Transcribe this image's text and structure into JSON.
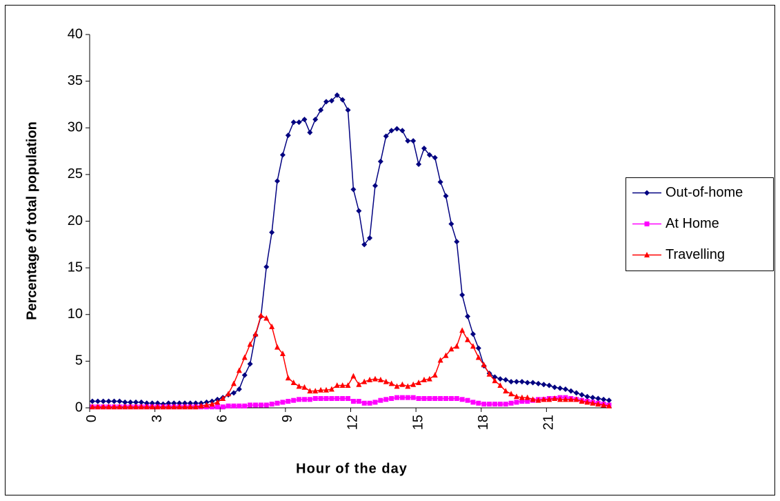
{
  "chart_data": {
    "type": "line",
    "x_label": "Hour of the day",
    "y_label": "Percentage of total population",
    "categories": [
      "0",
      null,
      null,
      null,
      null,
      null,
      null,
      null,
      null,
      null,
      null,
      null,
      "3",
      null,
      null,
      null,
      null,
      null,
      null,
      null,
      null,
      null,
      null,
      null,
      "6",
      null,
      null,
      null,
      null,
      null,
      null,
      null,
      null,
      null,
      null,
      null,
      "9",
      null,
      null,
      null,
      null,
      null,
      null,
      null,
      null,
      null,
      null,
      null,
      "12",
      null,
      null,
      null,
      null,
      null,
      null,
      null,
      null,
      null,
      null,
      null,
      "15",
      null,
      null,
      null,
      null,
      null,
      null,
      null,
      null,
      null,
      null,
      null,
      "18",
      null,
      null,
      null,
      null,
      null,
      null,
      null,
      null,
      null,
      null,
      null,
      "21",
      null,
      null,
      null,
      null,
      null,
      null,
      null,
      null,
      null,
      null,
      null
    ],
    "ylim": [
      0,
      40
    ],
    "yticks": [
      0,
      5,
      10,
      15,
      20,
      25,
      30,
      35,
      40
    ],
    "legend": "right",
    "series": [
      {
        "name": "Out-of-home",
        "color": "#000080",
        "marker": "diamond",
        "values": [
          0.7,
          0.7,
          0.7,
          0.7,
          0.7,
          0.7,
          0.6,
          0.6,
          0.6,
          0.6,
          0.5,
          0.5,
          0.5,
          0.4,
          0.5,
          0.5,
          0.5,
          0.5,
          0.5,
          0.5,
          0.5,
          0.6,
          0.7,
          0.9,
          1.1,
          1.4,
          1.6,
          2.0,
          3.5,
          4.7,
          7.8,
          9.8,
          15.1,
          18.8,
          24.3,
          27.1,
          29.2,
          30.6,
          30.6,
          30.9,
          29.5,
          30.9,
          31.9,
          32.8,
          32.9,
          33.5,
          33.0,
          31.9,
          23.4,
          21.1,
          17.5,
          18.2,
          23.8,
          26.4,
          29.1,
          29.7,
          29.9,
          29.7,
          28.6,
          28.6,
          26.1,
          27.8,
          27.1,
          26.8,
          24.2,
          22.7,
          19.7,
          17.8,
          12.1,
          9.8,
          7.9,
          6.4,
          4.5,
          3.7,
          3.3,
          3.1,
          3.0,
          2.8,
          2.8,
          2.8,
          2.7,
          2.7,
          2.6,
          2.5,
          2.4,
          2.2,
          2.1,
          2.0,
          1.8,
          1.6,
          1.4,
          1.2,
          1.1,
          1.0,
          0.9,
          0.8
        ]
      },
      {
        "name": "At Home",
        "color": "#ff00ff",
        "marker": "square",
        "values": [
          0.1,
          0.1,
          0.1,
          0.1,
          0.1,
          0.1,
          0.1,
          0.1,
          0.1,
          0.1,
          0.1,
          0.1,
          0.1,
          0.1,
          0.1,
          0.1,
          0.1,
          0.1,
          0.1,
          0.1,
          0.1,
          0.1,
          0.1,
          0.1,
          0.1,
          0.2,
          0.2,
          0.2,
          0.2,
          0.3,
          0.3,
          0.3,
          0.3,
          0.4,
          0.5,
          0.6,
          0.7,
          0.8,
          0.9,
          0.9,
          0.9,
          1.0,
          1.0,
          1.0,
          1.0,
          1.0,
          1.0,
          1.0,
          0.7,
          0.7,
          0.5,
          0.5,
          0.6,
          0.8,
          0.9,
          1.0,
          1.1,
          1.1,
          1.1,
          1.1,
          1.0,
          1.0,
          1.0,
          1.0,
          1.0,
          1.0,
          1.0,
          1.0,
          0.9,
          0.8,
          0.6,
          0.5,
          0.4,
          0.4,
          0.4,
          0.4,
          0.4,
          0.5,
          0.6,
          0.7,
          0.7,
          0.8,
          0.9,
          0.9,
          1.0,
          1.0,
          1.1,
          1.1,
          1.0,
          0.9,
          0.8,
          0.7,
          0.6,
          0.5,
          0.4,
          0.3
        ]
      },
      {
        "name": "Travelling",
        "color": "#ff0000",
        "marker": "triangle",
        "values": [
          0.1,
          0.1,
          0.1,
          0.1,
          0.1,
          0.1,
          0.1,
          0.1,
          0.1,
          0.1,
          0.1,
          0.1,
          0.1,
          0.1,
          0.1,
          0.1,
          0.1,
          0.1,
          0.1,
          0.1,
          0.2,
          0.3,
          0.4,
          0.6,
          1.0,
          1.5,
          2.6,
          4.0,
          5.4,
          6.8,
          7.9,
          9.9,
          9.6,
          8.7,
          6.5,
          5.8,
          3.2,
          2.7,
          2.3,
          2.2,
          1.8,
          1.8,
          1.9,
          1.9,
          2.0,
          2.4,
          2.4,
          2.4,
          3.4,
          2.5,
          2.8,
          3.0,
          3.1,
          3.0,
          2.8,
          2.6,
          2.3,
          2.5,
          2.3,
          2.5,
          2.7,
          3.0,
          3.1,
          3.5,
          5.1,
          5.6,
          6.3,
          6.6,
          8.3,
          7.3,
          6.6,
          5.4,
          4.6,
          3.6,
          2.9,
          2.4,
          1.8,
          1.5,
          1.2,
          1.1,
          1.1,
          0.9,
          0.8,
          0.9,
          0.9,
          1.0,
          0.9,
          0.9,
          0.9,
          0.9,
          0.7,
          0.6,
          0.5,
          0.4,
          0.3,
          0.2
        ]
      }
    ]
  }
}
